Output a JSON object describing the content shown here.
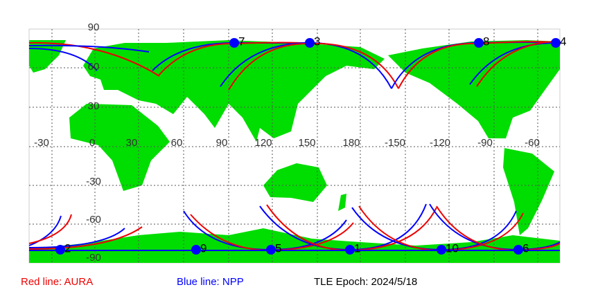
{
  "map": {
    "lon_labels": [
      "-30",
      "0",
      "30",
      "60",
      "90",
      "120",
      "150",
      "180",
      "-150",
      "-120",
      "-90",
      "-60"
    ],
    "lat_labels": [
      "90",
      "60",
      "30",
      "-30",
      "-60",
      "-90"
    ],
    "markers": [
      "7",
      "3",
      "8",
      "4",
      "2",
      "9",
      "5",
      "1",
      "10",
      "6"
    ]
  },
  "legend": {
    "aura": "Red line: AURA",
    "npp": "Blue line: NPP",
    "epoch": "TLE Epoch: 2024/5/18"
  }
}
